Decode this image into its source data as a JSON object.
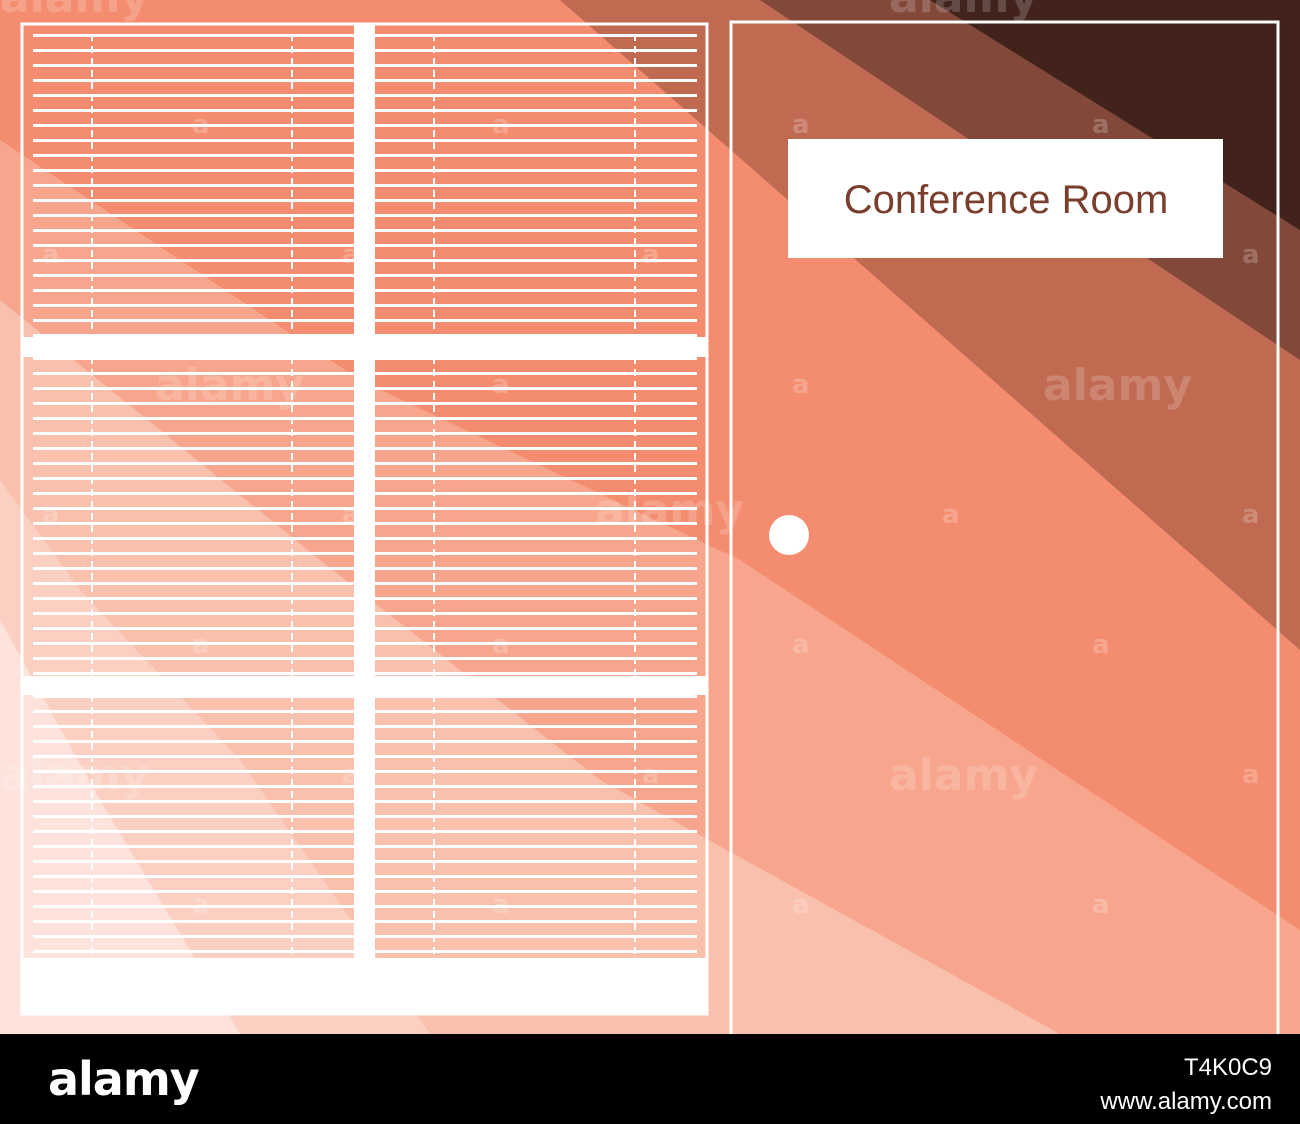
{
  "door": {
    "sign_text": "Conference Room"
  },
  "watermark": {
    "word": "alamy",
    "mark": "a"
  },
  "footer": {
    "brand": "alamy",
    "image_id": "T4K0C9",
    "site": "www.alamy.com"
  },
  "colors": {
    "stripe_lightest": "#fde3db",
    "stripe_light": "#f9c0ad",
    "stripe_mid": "#f7a68d",
    "stripe_salmon": "#f48c70",
    "stripe_brown": "#c06a52",
    "stripe_dark": "#82483a",
    "stripe_darkest": "#42231c",
    "frame": "#ffffff",
    "sign_text": "#7a3f2c"
  }
}
